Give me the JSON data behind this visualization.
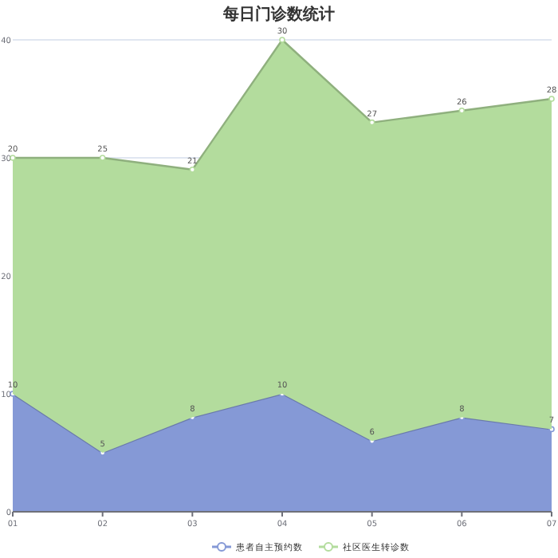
{
  "chart_data": {
    "type": "area",
    "title": "每日门诊数统计",
    "stacked": true,
    "categories": [
      "01",
      "02",
      "03",
      "04",
      "05",
      "06",
      "07"
    ],
    "series": [
      {
        "name": "患者自主预约数",
        "color": "#8599d6",
        "values": [
          10,
          5,
          8,
          10,
          6,
          8,
          7
        ]
      },
      {
        "name": "社区医生转诊数",
        "color": "#b3dc9d",
        "values": [
          20,
          25,
          21,
          30,
          27,
          26,
          28
        ]
      }
    ],
    "ylim": [
      0,
      40
    ],
    "yticks": [
      0,
      10,
      20,
      30,
      40
    ],
    "grid": "y",
    "legend": "bottom",
    "data_labels": true,
    "marker": "circle"
  }
}
